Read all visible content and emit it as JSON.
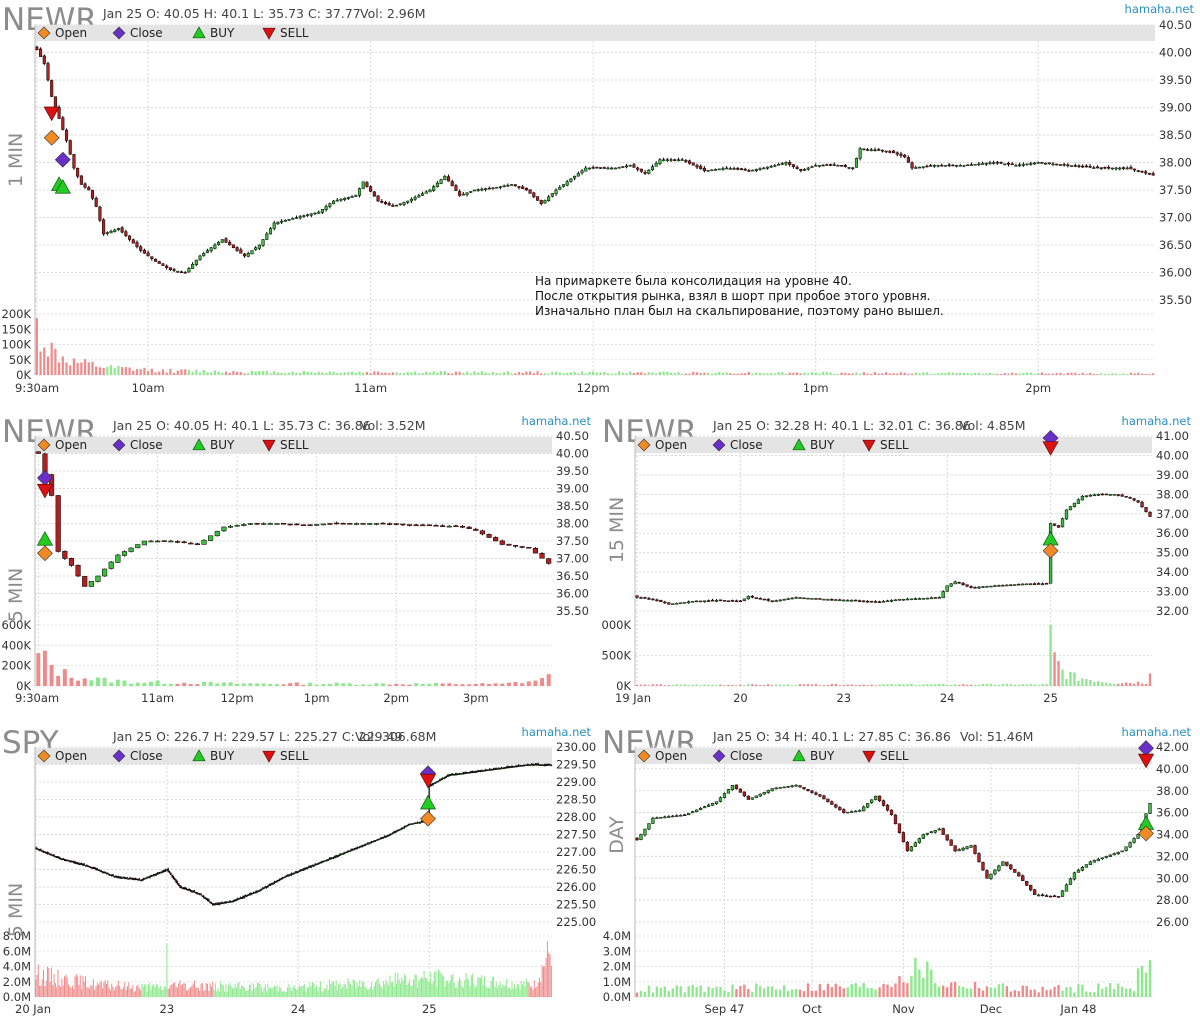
{
  "chart_data": [
    {
      "type": "candlestick",
      "title": "NEWR",
      "info": "Jan 25 O: 40.05 H: 40.1 L: 35.73 C: 37.77",
      "vol": "Vol: 2.96M",
      "brand": "hamaha.net",
      "timeframe": "1 MIN",
      "legend": [
        "Open",
        "Close",
        "BUY",
        "SELL"
      ],
      "y_ticks": [
        "40.50",
        "40.00",
        "39.50",
        "39.00",
        "38.50",
        "38.00",
        "37.50",
        "37.00",
        "36.50",
        "36.00",
        "35.50"
      ],
      "ylim": [
        35.5,
        40.5
      ],
      "vol_ticks": [
        "200K",
        "150K",
        "100K",
        "50K",
        "0K"
      ],
      "vol_max": 200000,
      "x_ticks": [
        "9:30am",
        "10am",
        "11am",
        "12pm",
        "1pm",
        "2pm"
      ],
      "x_tick_idx": [
        0,
        30,
        90,
        150,
        210,
        270
      ],
      "n": 302,
      "ohlc_keys": [
        [
          0,
          40.05
        ],
        [
          2,
          39.8
        ],
        [
          4,
          39.2
        ],
        [
          6,
          38.8
        ],
        [
          8,
          38.4
        ],
        [
          10,
          37.9
        ],
        [
          12,
          37.6
        ],
        [
          14,
          37.5
        ],
        [
          16,
          37.2
        ],
        [
          18,
          36.7
        ],
        [
          22,
          36.8
        ],
        [
          28,
          36.4
        ],
        [
          32,
          36.2
        ],
        [
          36,
          36.05
        ],
        [
          40,
          36.0
        ],
        [
          44,
          36.3
        ],
        [
          50,
          36.6
        ],
        [
          56,
          36.3
        ],
        [
          60,
          36.5
        ],
        [
          64,
          36.9
        ],
        [
          70,
          37.0
        ],
        [
          76,
          37.1
        ],
        [
          80,
          37.3
        ],
        [
          86,
          37.4
        ],
        [
          88,
          37.65
        ],
        [
          92,
          37.3
        ],
        [
          96,
          37.2
        ],
        [
          100,
          37.3
        ],
        [
          106,
          37.5
        ],
        [
          110,
          37.75
        ],
        [
          114,
          37.4
        ],
        [
          118,
          37.5
        ],
        [
          124,
          37.55
        ],
        [
          128,
          37.6
        ],
        [
          132,
          37.5
        ],
        [
          136,
          37.25
        ],
        [
          140,
          37.5
        ],
        [
          144,
          37.7
        ],
        [
          148,
          37.9
        ],
        [
          156,
          37.9
        ],
        [
          160,
          37.95
        ],
        [
          164,
          37.8
        ],
        [
          168,
          38.05
        ],
        [
          174,
          38.05
        ],
        [
          180,
          37.85
        ],
        [
          186,
          37.9
        ],
        [
          192,
          37.85
        ],
        [
          196,
          37.9
        ],
        [
          202,
          38.0
        ],
        [
          206,
          37.85
        ],
        [
          210,
          37.95
        ],
        [
          216,
          37.95
        ],
        [
          220,
          37.9
        ],
        [
          222,
          38.25
        ],
        [
          230,
          38.2
        ],
        [
          234,
          38.1
        ],
        [
          236,
          37.9
        ],
        [
          242,
          37.95
        ],
        [
          250,
          37.95
        ],
        [
          258,
          38.0
        ],
        [
          264,
          37.95
        ],
        [
          270,
          38.0
        ],
        [
          278,
          37.95
        ],
        [
          286,
          37.9
        ],
        [
          294,
          37.9
        ],
        [
          301,
          37.77
        ]
      ],
      "ohlc_seed": 1,
      "volume_profile": [
        [
          0,
          150000
        ],
        [
          3,
          90000
        ],
        [
          6,
          60000
        ],
        [
          10,
          40000
        ],
        [
          20,
          22000
        ],
        [
          35,
          14000
        ],
        [
          60,
          10000
        ],
        [
          100,
          9000
        ],
        [
          160,
          8000
        ],
        [
          301,
          5000
        ]
      ],
      "markers": [
        {
          "kind": "SELL",
          "idx": 4,
          "price": 38.9
        },
        {
          "kind": "Open",
          "idx": 4,
          "price": 38.45
        },
        {
          "kind": "Close",
          "idx": 7,
          "price": 38.05
        },
        {
          "kind": "BUY",
          "idx": 6,
          "price": 37.6
        },
        {
          "kind": "BUY",
          "idx": 7,
          "price": 37.55
        }
      ],
      "annotation": [
        "На примаркете была консолидация на уровне 40.",
        "После открытия рынка, взял в шорт при пробое этого уровня.",
        "Изначально план был на скальпирование, поэтому рано вышел."
      ]
    },
    {
      "type": "candlestick",
      "title": "NEWR",
      "info": "Jan 25 O: 40.05 H: 40.1 L: 35.73 C: 36.86",
      "vol": "Vol: 3.52M",
      "brand": "hamaha.net",
      "timeframe": "5 MIN",
      "legend": [
        "Open",
        "Close",
        "BUY",
        "SELL"
      ],
      "y_ticks": [
        "40.50",
        "40.00",
        "39.50",
        "39.00",
        "38.50",
        "38.00",
        "37.50",
        "37.00",
        "36.50",
        "36.00",
        "35.50"
      ],
      "ylim": [
        35.5,
        40.5
      ],
      "vol_ticks": [
        "600K",
        "400K",
        "200K",
        "0K"
      ],
      "vol_max": 600000,
      "x_ticks": [
        "9:30am",
        "11am",
        "12pm",
        "1pm",
        "2pm",
        "3pm"
      ],
      "x_tick_idx": [
        0,
        18,
        30,
        42,
        54,
        66
      ],
      "n": 78,
      "ohlc_keys": [
        [
          0,
          40.0
        ],
        [
          2,
          38.8
        ],
        [
          3,
          37.2
        ],
        [
          5,
          36.8
        ],
        [
          7,
          36.2
        ],
        [
          9,
          36.5
        ],
        [
          12,
          37.1
        ],
        [
          16,
          37.5
        ],
        [
          20,
          37.5
        ],
        [
          24,
          37.4
        ],
        [
          28,
          37.9
        ],
        [
          32,
          38.0
        ],
        [
          36,
          38.0
        ],
        [
          40,
          37.95
        ],
        [
          44,
          38.0
        ],
        [
          48,
          38.0
        ],
        [
          52,
          38.0
        ],
        [
          56,
          37.95
        ],
        [
          60,
          37.95
        ],
        [
          64,
          37.9
        ],
        [
          66,
          37.8
        ],
        [
          70,
          37.4
        ],
        [
          74,
          37.3
        ],
        [
          77,
          36.86
        ]
      ],
      "ohlc_seed": 2,
      "volume_profile": [
        [
          0,
          300000
        ],
        [
          2,
          200000
        ],
        [
          4,
          120000
        ],
        [
          8,
          70000
        ],
        [
          14,
          40000
        ],
        [
          30,
          25000
        ],
        [
          70,
          20000
        ],
        [
          76,
          60000
        ],
        [
          77,
          180000
        ]
      ],
      "markers": [
        {
          "kind": "Close",
          "idx": 1,
          "price": 39.3
        },
        {
          "kind": "SELL",
          "idx": 1,
          "price": 38.95
        },
        {
          "kind": "BUY",
          "idx": 1,
          "price": 37.55
        },
        {
          "kind": "Open",
          "idx": 1,
          "price": 37.15
        }
      ]
    },
    {
      "type": "candlestick",
      "title": "NEWR",
      "info": "Jan 25 O: 32.28 H: 40.1 L: 32.01 C: 36.86",
      "vol": "Vol: 4.85M",
      "brand": "hamaha.net",
      "timeframe": "15 MIN",
      "legend": [
        "Open",
        "Close",
        "BUY",
        "SELL"
      ],
      "y_ticks": [
        "41.00",
        "40.00",
        "39.00",
        "38.00",
        "37.00",
        "36.00",
        "35.00",
        "34.00",
        "33.00",
        "32.00"
      ],
      "ylim": [
        32.0,
        41.0
      ],
      "vol_ticks": [
        "000K",
        "500K",
        "0K"
      ],
      "vol_max": 1000000,
      "x_ticks": [
        "19 Jan",
        "20",
        "23",
        "24",
        "25"
      ],
      "x_tick_idx": [
        0,
        26,
        52,
        78,
        104
      ],
      "n": 130,
      "ohlc_keys": [
        [
          0,
          32.7
        ],
        [
          4,
          32.6
        ],
        [
          8,
          32.35
        ],
        [
          14,
          32.5
        ],
        [
          20,
          32.55
        ],
        [
          26,
          32.5
        ],
        [
          28,
          32.75
        ],
        [
          34,
          32.5
        ],
        [
          40,
          32.7
        ],
        [
          48,
          32.6
        ],
        [
          54,
          32.55
        ],
        [
          60,
          32.45
        ],
        [
          66,
          32.6
        ],
        [
          72,
          32.65
        ],
        [
          76,
          32.7
        ],
        [
          78,
          33.3
        ],
        [
          80,
          33.5
        ],
        [
          84,
          33.2
        ],
        [
          90,
          33.3
        ],
        [
          98,
          33.4
        ],
        [
          103,
          33.4
        ],
        [
          104,
          36.5
        ],
        [
          106,
          36.3
        ],
        [
          108,
          37.2
        ],
        [
          112,
          37.9
        ],
        [
          116,
          38.0
        ],
        [
          120,
          38.0
        ],
        [
          124,
          37.8
        ],
        [
          126,
          37.6
        ],
        [
          129,
          36.86
        ]
      ],
      "ohlc_seed": 3,
      "volume_profile": [
        [
          0,
          20000
        ],
        [
          103,
          25000
        ],
        [
          104,
          1000000
        ],
        [
          105,
          450000
        ],
        [
          107,
          250000
        ],
        [
          110,
          150000
        ],
        [
          120,
          60000
        ],
        [
          128,
          60000
        ],
        [
          129,
          320000
        ]
      ],
      "markers": [
        {
          "kind": "Close",
          "idx": 104,
          "price": 40.9
        },
        {
          "kind": "SELL",
          "idx": 104,
          "price": 40.4
        },
        {
          "kind": "BUY",
          "idx": 104,
          "price": 35.7
        },
        {
          "kind": "Open",
          "idx": 104,
          "price": 35.1
        }
      ]
    },
    {
      "type": "candlestick",
      "title": "SPY",
      "info": "Jan 25 O: 226.7 H: 229.57 L: 225.27 C: 229.49",
      "vol": "Vol: 306.68M",
      "brand": "hamaha.net",
      "timeframe": "5 MIN",
      "legend": [
        "Open",
        "Close",
        "BUY",
        "SELL"
      ],
      "y_ticks": [
        "230.00",
        "229.50",
        "229.00",
        "228.50",
        "228.00",
        "227.50",
        "227.00",
        "226.50",
        "226.00",
        "225.50",
        "225.00"
      ],
      "ylim": [
        225.0,
        230.0
      ],
      "vol_ticks": [
        "8.0M",
        "6.0M",
        "4.0M",
        "2.0M",
        "0.0M"
      ],
      "vol_max": 8000000,
      "x_ticks": [
        "20 Jan",
        "23",
        "24",
        "25"
      ],
      "x_tick_idx": [
        0,
        100,
        200,
        300
      ],
      "n": 394,
      "ohlc_keys": [
        [
          0,
          227.1
        ],
        [
          20,
          226.8
        ],
        [
          40,
          226.6
        ],
        [
          60,
          226.3
        ],
        [
          80,
          226.2
        ],
        [
          100,
          226.5
        ],
        [
          110,
          226.0
        ],
        [
          125,
          225.8
        ],
        [
          135,
          225.5
        ],
        [
          150,
          225.6
        ],
        [
          170,
          225.9
        ],
        [
          190,
          226.3
        ],
        [
          210,
          226.6
        ],
        [
          230,
          226.9
        ],
        [
          250,
          227.2
        ],
        [
          270,
          227.5
        ],
        [
          285,
          227.8
        ],
        [
          299,
          227.9
        ],
        [
          300,
          228.9
        ],
        [
          315,
          229.2
        ],
        [
          335,
          229.3
        ],
        [
          355,
          229.4
        ],
        [
          375,
          229.5
        ],
        [
          393,
          229.49
        ]
      ],
      "ohlc_seed": 4,
      "volume_profile": [
        [
          0,
          3000000
        ],
        [
          50,
          1500000
        ],
        [
          99,
          1200000
        ],
        [
          100,
          7000000
        ],
        [
          101,
          1500000
        ],
        [
          200,
          1200000
        ],
        [
          300,
          2500000
        ],
        [
          380,
          1500000
        ],
        [
          393,
          6000000
        ]
      ],
      "markers": [
        {
          "kind": "Close",
          "idx": 299,
          "price": 229.25
        },
        {
          "kind": "SELL",
          "idx": 299,
          "price": 229.05
        },
        {
          "kind": "BUY",
          "idx": 299,
          "price": 228.4
        },
        {
          "kind": "Open",
          "idx": 299,
          "price": 227.95
        }
      ]
    },
    {
      "type": "candlestick",
      "title": "NEWR",
      "info": "Jan 25 O: 34 H: 40.1 L: 27.85 C: 36.86",
      "vol": "Vol: 51.46M",
      "brand": "hamaha.net",
      "timeframe": "DAY",
      "legend": [
        "Open",
        "Close",
        "BUY",
        "SELL"
      ],
      "y_ticks": [
        "42.00",
        "40.00",
        "38.00",
        "36.00",
        "34.00",
        "32.00",
        "30.00",
        "28.00",
        "26.00"
      ],
      "ylim": [
        26.0,
        42.0
      ],
      "vol_ticks": [
        "4.0M",
        "3.0M",
        "2.0M",
        "1.0M",
        "0.0M"
      ],
      "vol_max": 4000000,
      "x_ticks": [
        "Sep 47",
        "Oct",
        "Nov",
        "Dec",
        "Jan 48"
      ],
      "x_tick_idx": [
        22,
        44,
        67,
        89,
        111
      ],
      "n": 130,
      "ohlc_keys": [
        [
          0,
          33.5
        ],
        [
          4,
          35.5
        ],
        [
          12,
          35.8
        ],
        [
          20,
          37.0
        ],
        [
          24,
          38.5
        ],
        [
          28,
          37.2
        ],
        [
          34,
          38.2
        ],
        [
          40,
          38.5
        ],
        [
          46,
          37.5
        ],
        [
          52,
          36.0
        ],
        [
          56,
          36.2
        ],
        [
          60,
          37.5
        ],
        [
          64,
          35.8
        ],
        [
          68,
          32.5
        ],
        [
          72,
          34.0
        ],
        [
          76,
          34.5
        ],
        [
          80,
          32.5
        ],
        [
          84,
          33.0
        ],
        [
          88,
          30.0
        ],
        [
          92,
          31.5
        ],
        [
          96,
          30.2
        ],
        [
          100,
          28.5
        ],
        [
          106,
          28.3
        ],
        [
          110,
          30.5
        ],
        [
          114,
          31.5
        ],
        [
          118,
          32.0
        ],
        [
          122,
          32.5
        ],
        [
          126,
          34.0
        ],
        [
          129,
          36.86
        ]
      ],
      "ohlc_seed": 5,
      "volume_profile": [
        [
          0,
          500000
        ],
        [
          60,
          700000
        ],
        [
          68,
          1500000
        ],
        [
          72,
          2000000
        ],
        [
          76,
          900000
        ],
        [
          100,
          500000
        ],
        [
          125,
          700000
        ],
        [
          129,
          3800000
        ]
      ],
      "markers": [
        {
          "kind": "Close",
          "idx": 128,
          "price": 41.9
        },
        {
          "kind": "SELL",
          "idx": 128,
          "price": 40.8
        },
        {
          "kind": "BUY",
          "idx": 128,
          "price": 35.0
        },
        {
          "kind": "Open",
          "idx": 128,
          "price": 34.1
        }
      ]
    }
  ]
}
